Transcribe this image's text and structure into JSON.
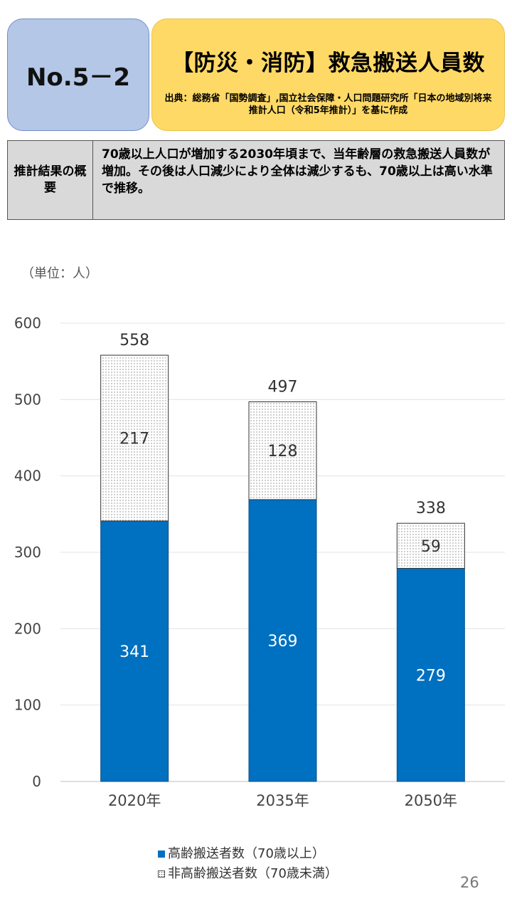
{
  "header": {
    "number": "No.5－2",
    "title": "【防災・消防】救急搬送人員数",
    "source": "出典：総務省「国勢調査」,国立社会保障・人口問題研究所「日本の地域別将来推計人口（令和5年推計）」を基に作成"
  },
  "summary": {
    "label": "推計結果の概要",
    "text": "70歳以上人口が増加する2030年頃まで、当年齢層の救急搬送人員数が増加。その後は人口減少により全体は減少するも、70歳以上は高い水準で推移。"
  },
  "unit_label": "（単位：人）",
  "page_number": "26",
  "chart_data": {
    "type": "bar",
    "stacked": true,
    "categories": [
      "2020年",
      "2035年",
      "2050年"
    ],
    "series": [
      {
        "name": "高齢搬送者数（70歳以上）",
        "values": [
          341,
          369,
          279
        ],
        "color": "#0070c0",
        "pattern": "solid"
      },
      {
        "name": "非高齢搬送者数（70歳未満）",
        "values": [
          217,
          128,
          59
        ],
        "color": "#ffffff",
        "pattern": "dots"
      }
    ],
    "totals": [
      558,
      497,
      338
    ],
    "ylim": [
      0,
      600
    ],
    "yticks": [
      0,
      100,
      200,
      300,
      400,
      500,
      600
    ],
    "grid": true,
    "legend_position": "bottom"
  }
}
